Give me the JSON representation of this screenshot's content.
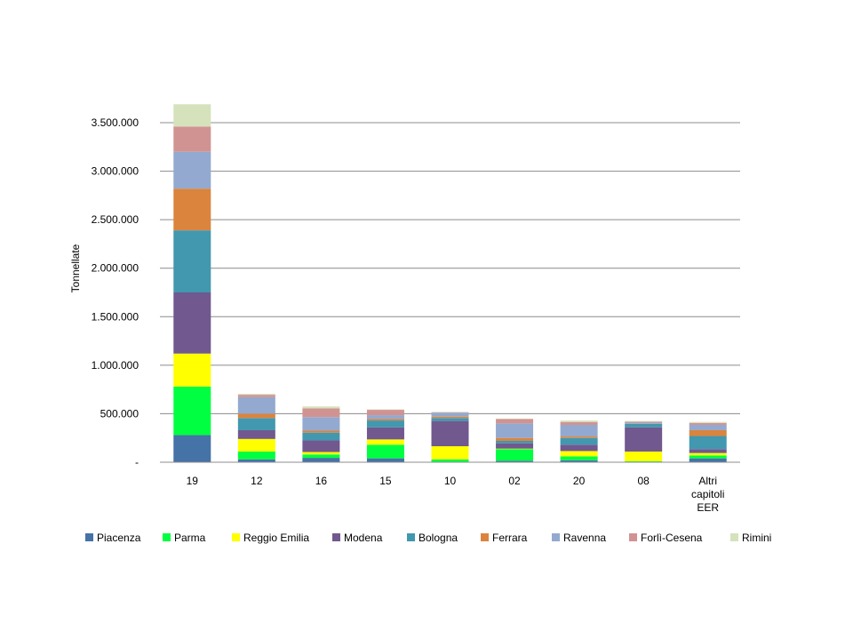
{
  "chart_data": {
    "type": "bar",
    "stacked": true,
    "title": "",
    "xlabel": "",
    "ylabel": "Tonnellate",
    "ylim": [
      0,
      3500000
    ],
    "yticks": [
      0,
      500000,
      1000000,
      1500000,
      2000000,
      2500000,
      3000000,
      3500000
    ],
    "ytick_labels": [
      "-",
      "500.000",
      "1.000.000",
      "1.500.000",
      "2.000.000",
      "2.500.000",
      "3.000.000",
      "3.500.000"
    ],
    "grid": true,
    "legend_position": "bottom",
    "categories": [
      "19",
      "12",
      "16",
      "15",
      "10",
      "02",
      "20",
      "08",
      "Altri capitoli EER"
    ],
    "category_lines": [
      [
        "19"
      ],
      [
        "12"
      ],
      [
        "16"
      ],
      [
        "15"
      ],
      [
        "10"
      ],
      [
        "02"
      ],
      [
        "20"
      ],
      [
        "08"
      ],
      [
        "Altri",
        "capitoli",
        "EER"
      ]
    ],
    "series": [
      {
        "name": "Piacenza",
        "color": "#4572A7",
        "values": [
          280000,
          30000,
          45000,
          40000,
          5000,
          15000,
          20000,
          5000,
          40000
        ]
      },
      {
        "name": "Parma",
        "color": "#00FF40",
        "values": [
          500000,
          80000,
          35000,
          140000,
          25000,
          120000,
          40000,
          5000,
          30000
        ]
      },
      {
        "name": "Reggio Emilia",
        "color": "#FFFF00",
        "values": [
          340000,
          130000,
          25000,
          55000,
          135000,
          5000,
          55000,
          100000,
          25000
        ]
      },
      {
        "name": "Modena",
        "color": "#71588F",
        "values": [
          630000,
          90000,
          120000,
          125000,
          260000,
          55000,
          65000,
          250000,
          40000
        ]
      },
      {
        "name": "Bologna",
        "color": "#4198AF",
        "values": [
          640000,
          125000,
          80000,
          70000,
          30000,
          25000,
          70000,
          35000,
          135000
        ]
      },
      {
        "name": "Ferrara",
        "color": "#DB843D",
        "values": [
          430000,
          45000,
          20000,
          15000,
          15000,
          30000,
          15000,
          5000,
          60000
        ]
      },
      {
        "name": "Ravenna",
        "color": "#93A9CF",
        "values": [
          380000,
          170000,
          140000,
          40000,
          40000,
          150000,
          120000,
          15000,
          55000
        ]
      },
      {
        "name": "Forlì-Cesena",
        "color": "#D19392",
        "values": [
          260000,
          25000,
          90000,
          55000,
          5000,
          45000,
          30000,
          5000,
          20000
        ]
      },
      {
        "name": "Rimini",
        "color": "#D5E2BB",
        "values": [
          230000,
          10000,
          20000,
          5000,
          5000,
          5000,
          15000,
          5000,
          10000
        ]
      }
    ]
  }
}
